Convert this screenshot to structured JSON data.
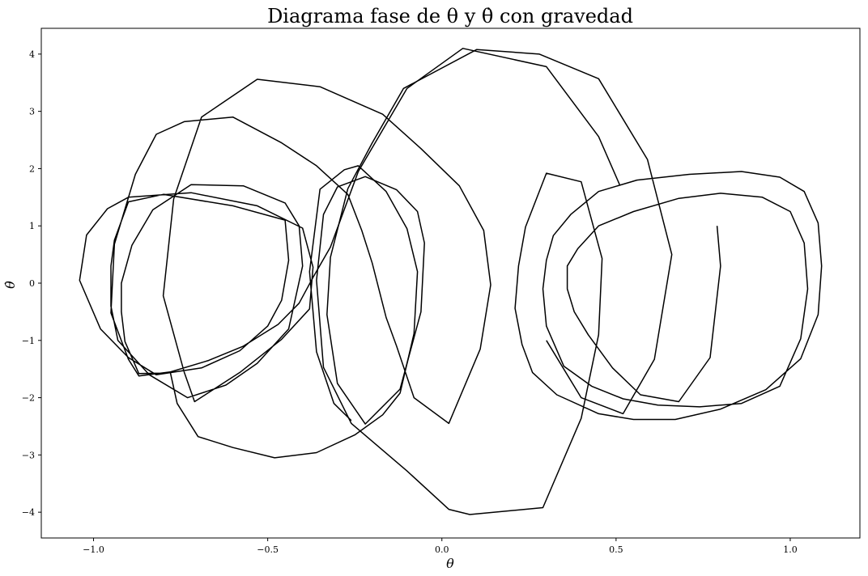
{
  "chart_data": {
    "type": "line",
    "title": "Diagrama fase de θ y θ̇ con gravedad",
    "xlabel": "θ",
    "ylabel": "θ̇",
    "xlim": [
      -1.15,
      1.2
    ],
    "ylim": [
      -4.45,
      4.45
    ],
    "x_ticks": [
      -1.0,
      -0.5,
      0.0,
      0.5,
      1.0
    ],
    "x_tick_labels": [
      "−1.0",
      "−0.5",
      "0.0",
      "0.5",
      "1.0"
    ],
    "y_ticks": [
      -4,
      -3,
      -2,
      -1,
      0,
      1,
      2,
      3,
      4
    ],
    "y_tick_labels": [
      "−4",
      "−3",
      "−2",
      "−1",
      "0",
      "1",
      "2",
      "3",
      "4"
    ],
    "grid": false,
    "line_color": "#000000",
    "series": [
      {
        "points": [
          [
            0.79,
            1.0
          ],
          [
            0.8,
            0.3
          ],
          [
            0.77,
            -1.3
          ],
          [
            0.68,
            -2.07
          ],
          [
            0.57,
            -1.95
          ],
          [
            0.49,
            -1.48
          ],
          [
            0.42,
            -0.9
          ],
          [
            0.38,
            -0.5
          ],
          [
            0.36,
            -0.1
          ],
          [
            0.36,
            0.3
          ],
          [
            0.39,
            0.6
          ],
          [
            0.45,
            1.0
          ],
          [
            0.55,
            1.25
          ],
          [
            0.68,
            1.48
          ],
          [
            0.8,
            1.57
          ],
          [
            0.92,
            1.5
          ],
          [
            1.0,
            1.25
          ],
          [
            1.04,
            0.7
          ],
          [
            1.05,
            -0.1
          ],
          [
            1.03,
            -0.97
          ],
          [
            0.97,
            -1.8
          ],
          [
            0.86,
            -2.1
          ],
          [
            0.74,
            -2.16
          ],
          [
            0.62,
            -2.13
          ],
          [
            0.52,
            -2.02
          ],
          [
            0.43,
            -1.8
          ],
          [
            0.35,
            -1.45
          ],
          [
            0.3,
            -0.75
          ],
          [
            0.29,
            -0.1
          ],
          [
            0.3,
            0.4
          ],
          [
            0.32,
            0.83
          ],
          [
            0.37,
            1.2
          ],
          [
            0.45,
            1.6
          ],
          [
            0.56,
            1.8
          ],
          [
            0.71,
            1.9
          ],
          [
            0.86,
            1.95
          ],
          [
            0.97,
            1.85
          ],
          [
            1.04,
            1.6
          ],
          [
            1.08,
            1.05
          ],
          [
            1.09,
            0.3
          ],
          [
            1.08,
            -0.55
          ],
          [
            1.03,
            -1.32
          ],
          [
            0.93,
            -1.86
          ],
          [
            0.8,
            -2.2
          ],
          [
            0.67,
            -2.38
          ],
          [
            0.55,
            -2.38
          ],
          [
            0.45,
            -2.28
          ],
          [
            0.33,
            -1.95
          ],
          [
            0.26,
            -1.56
          ],
          [
            0.23,
            -1.07
          ],
          [
            0.21,
            -0.44
          ],
          [
            0.22,
            0.3
          ],
          [
            0.24,
            0.98
          ],
          [
            0.3,
            1.92
          ],
          [
            0.4,
            1.77
          ],
          [
            0.46,
            0.43
          ],
          [
            0.45,
            -0.9
          ],
          [
            0.4,
            -2.36
          ],
          [
            0.29,
            -3.92
          ],
          [
            0.08,
            -4.04
          ],
          [
            0.02,
            -3.95
          ],
          [
            -0.1,
            -3.28
          ],
          [
            -0.26,
            -2.45
          ],
          [
            -0.34,
            -1.47
          ],
          [
            -0.36,
            0.05
          ],
          [
            -0.34,
            1.2
          ],
          [
            -0.3,
            1.68
          ],
          [
            -0.22,
            1.86
          ],
          [
            -0.13,
            1.63
          ],
          [
            -0.07,
            1.25
          ],
          [
            -0.05,
            0.7
          ],
          [
            -0.06,
            -0.5
          ],
          [
            -0.12,
            -1.85
          ],
          [
            -0.22,
            -2.46
          ],
          [
            -0.3,
            -1.75
          ],
          [
            -0.33,
            -0.55
          ],
          [
            -0.32,
            0.45
          ],
          [
            -0.27,
            1.65
          ],
          [
            -0.2,
            2.45
          ],
          [
            -0.11,
            3.4
          ],
          [
            0.1,
            4.08
          ],
          [
            0.28,
            4.0
          ],
          [
            0.45,
            3.57
          ],
          [
            0.59,
            2.16
          ],
          [
            0.66,
            0.5
          ],
          [
            0.61,
            -1.33
          ],
          [
            0.52,
            -2.28
          ],
          [
            0.4,
            -2.0
          ],
          [
            0.3,
            -1.0
          ]
        ]
      },
      {
        "points": [
          [
            0.51,
            1.72
          ],
          [
            0.45,
            2.56
          ],
          [
            0.3,
            3.78
          ],
          [
            0.06,
            4.1
          ],
          [
            -0.1,
            3.4
          ],
          [
            -0.24,
            1.95
          ],
          [
            -0.32,
            0.63
          ],
          [
            -0.37,
            0.1
          ],
          [
            -0.41,
            -0.35
          ],
          [
            -0.47,
            -0.72
          ],
          [
            -0.57,
            -1.1
          ],
          [
            -0.67,
            -1.35
          ],
          [
            -0.79,
            -1.57
          ],
          [
            -0.87,
            -1.58
          ],
          [
            -0.91,
            -1.02
          ],
          [
            -0.92,
            -0.5
          ],
          [
            -0.92,
            0.0
          ],
          [
            -0.89,
            0.66
          ],
          [
            -0.83,
            1.28
          ],
          [
            -0.72,
            1.72
          ],
          [
            -0.57,
            1.7
          ],
          [
            -0.45,
            1.4
          ],
          [
            -0.41,
            1.0
          ],
          [
            -0.4,
            0.3
          ],
          [
            -0.44,
            -0.8
          ],
          [
            -0.53,
            -1.4
          ],
          [
            -0.62,
            -1.78
          ],
          [
            -0.73,
            -2.0
          ],
          [
            -0.84,
            -1.6
          ],
          [
            -0.93,
            -1.0
          ],
          [
            -0.95,
            -0.4
          ],
          [
            -0.95,
            0.3
          ],
          [
            -0.94,
            0.75
          ],
          [
            -0.9,
            1.42
          ],
          [
            -0.8,
            1.55
          ],
          [
            -0.6,
            1.35
          ],
          [
            -0.45,
            1.1
          ],
          [
            -0.44,
            0.4
          ],
          [
            -0.46,
            -0.3
          ],
          [
            -0.5,
            -0.75
          ],
          [
            -0.58,
            -1.18
          ],
          [
            -0.69,
            -1.48
          ],
          [
            -0.82,
            -1.6
          ],
          [
            -0.9,
            -1.3
          ],
          [
            -0.98,
            -0.8
          ],
          [
            -1.04,
            0.05
          ],
          [
            -1.02,
            0.84
          ],
          [
            -0.96,
            1.3
          ],
          [
            -0.9,
            1.5
          ],
          [
            -0.72,
            1.58
          ],
          [
            -0.53,
            1.35
          ],
          [
            -0.4,
            0.96
          ],
          [
            -0.37,
            0.28
          ],
          [
            -0.38,
            -0.45
          ],
          [
            -0.46,
            -0.98
          ],
          [
            -0.58,
            -1.56
          ],
          [
            -0.71,
            -2.07
          ],
          [
            -0.74,
            -1.55
          ],
          [
            -0.8,
            -0.22
          ],
          [
            -0.77,
            1.47
          ],
          [
            -0.69,
            2.9
          ],
          [
            -0.53,
            3.56
          ],
          [
            -0.35,
            3.43
          ],
          [
            -0.17,
            2.95
          ],
          [
            -0.06,
            2.35
          ],
          [
            0.05,
            1.7
          ],
          [
            0.12,
            0.92
          ],
          [
            0.14,
            -0.03
          ],
          [
            0.11,
            -1.15
          ],
          [
            0.02,
            -2.45
          ],
          [
            -0.08,
            -2.0
          ],
          [
            -0.13,
            -1.1
          ],
          [
            -0.16,
            -0.6
          ],
          [
            -0.2,
            0.35
          ],
          [
            -0.23,
            0.92
          ],
          [
            -0.27,
            1.55
          ],
          [
            -0.36,
            2.05
          ],
          [
            -0.46,
            2.45
          ],
          [
            -0.6,
            2.9
          ],
          [
            -0.74,
            2.82
          ],
          [
            -0.82,
            2.6
          ],
          [
            -0.88,
            1.9
          ],
          [
            -0.94,
            0.68
          ],
          [
            -0.95,
            -0.52
          ],
          [
            -0.9,
            -1.33
          ],
          [
            -0.87,
            -1.62
          ],
          [
            -0.78,
            -1.55
          ],
          [
            -0.76,
            -2.1
          ],
          [
            -0.7,
            -2.68
          ],
          [
            -0.6,
            -2.87
          ],
          [
            -0.48,
            -3.05
          ],
          [
            -0.36,
            -2.96
          ],
          [
            -0.25,
            -2.65
          ],
          [
            -0.17,
            -2.3
          ],
          [
            -0.12,
            -1.92
          ],
          [
            -0.08,
            -0.88
          ],
          [
            -0.07,
            0.2
          ],
          [
            -0.1,
            0.95
          ],
          [
            -0.16,
            1.6
          ],
          [
            -0.24,
            2.05
          ],
          [
            -0.28,
            1.98
          ],
          [
            -0.35,
            1.64
          ],
          [
            -0.38,
            0.2
          ],
          [
            -0.36,
            -1.2
          ],
          [
            -0.31,
            -2.1
          ],
          [
            -0.26,
            -2.4
          ]
        ]
      }
    ]
  }
}
